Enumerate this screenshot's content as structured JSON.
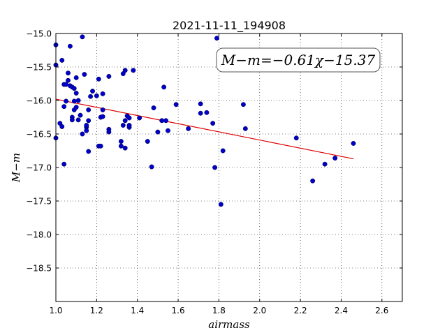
{
  "chart_data": {
    "type": "scatter",
    "title": "2021-11-11_194908",
    "xlabel": "airmass",
    "ylabel": "M−m",
    "xlim": [
      1.0,
      2.7
    ],
    "ylim": [
      -15.0,
      -19.0
    ],
    "y_inverted": true,
    "grid": true,
    "xticks": [
      1.0,
      1.2,
      1.4,
      1.6,
      1.8,
      2.0,
      2.2,
      2.4,
      2.6
    ],
    "xtick_labels": [
      "1.0",
      "1.2",
      "1.4",
      "1.6",
      "1.8",
      "2.0",
      "2.2",
      "2.4",
      "2.6"
    ],
    "yticks": [
      -15.0,
      -15.5,
      -16.0,
      -16.5,
      -17.0,
      -17.5,
      -18.0,
      -18.5
    ],
    "ytick_labels": [
      "−15.0",
      "−15.5",
      "−16.0",
      "−16.5",
      "−17.0",
      "−17.5",
      "−18.0",
      "−18.5"
    ],
    "annotation": "M−m=−0.61χ−15.37",
    "annotation_position": "top-right",
    "point_color": "#0000cc",
    "fit_color": "#dd0000",
    "fit": {
      "slope": -0.61,
      "intercept": -15.37,
      "x_range": [
        1.0,
        2.46
      ]
    },
    "points": [
      [
        1.0,
        -15.17
      ],
      [
        1.0,
        -15.47
      ],
      [
        1.0,
        -16.56
      ],
      [
        1.02,
        -16.34
      ],
      [
        1.03,
        -16.39
      ],
      [
        1.03,
        -15.4
      ],
      [
        1.04,
        -16.95
      ],
      [
        1.04,
        -16.09
      ],
      [
        1.05,
        -16.01
      ],
      [
        1.04,
        -15.76
      ],
      [
        1.05,
        -15.76
      ],
      [
        1.06,
        -15.7
      ],
      [
        1.06,
        -15.59
      ],
      [
        1.07,
        -15.78
      ],
      [
        1.07,
        -15.19
      ],
      [
        1.08,
        -16.25
      ],
      [
        1.08,
        -16.29
      ],
      [
        1.09,
        -16.14
      ],
      [
        1.09,
        -16.01
      ],
      [
        1.08,
        -15.8
      ],
      [
        1.09,
        -15.82
      ],
      [
        1.1,
        -16.1
      ],
      [
        1.1,
        -15.66
      ],
      [
        1.1,
        -15.89
      ],
      [
        1.11,
        -16.29
      ],
      [
        1.11,
        -16.0
      ],
      [
        1.12,
        -16.22
      ],
      [
        1.13,
        -15.05
      ],
      [
        1.13,
        -16.5
      ],
      [
        1.14,
        -15.61
      ],
      [
        1.15,
        -16.4
      ],
      [
        1.15,
        -16.37
      ],
      [
        1.15,
        -16.45
      ],
      [
        1.16,
        -16.14
      ],
      [
        1.16,
        -16.3
      ],
      [
        1.16,
        -16.76
      ],
      [
        1.17,
        -15.94
      ],
      [
        1.18,
        -15.86
      ],
      [
        1.2,
        -15.93
      ],
      [
        1.21,
        -16.68
      ],
      [
        1.21,
        -15.68
      ],
      [
        1.22,
        -16.68
      ],
      [
        1.22,
        -16.25
      ],
      [
        1.23,
        -16.14
      ],
      [
        1.23,
        -16.24
      ],
      [
        1.23,
        -15.9
      ],
      [
        1.26,
        -15.64
      ],
      [
        1.26,
        -16.43
      ],
      [
        1.26,
        -16.47
      ],
      [
        1.32,
        -16.68
      ],
      [
        1.32,
        -16.61
      ],
      [
        1.33,
        -15.6
      ],
      [
        1.33,
        -16.37
      ],
      [
        1.34,
        -15.55
      ],
      [
        1.34,
        -16.3
      ],
      [
        1.34,
        -16.71
      ],
      [
        1.35,
        -16.23
      ],
      [
        1.36,
        -16.4
      ],
      [
        1.36,
        -16.26
      ],
      [
        1.36,
        -16.37
      ],
      [
        1.38,
        -15.55
      ],
      [
        1.41,
        -16.26
      ],
      [
        1.45,
        -16.61
      ],
      [
        1.47,
        -16.99
      ],
      [
        1.48,
        -16.11
      ],
      [
        1.5,
        -16.47
      ],
      [
        1.52,
        -16.3
      ],
      [
        1.53,
        -15.8
      ],
      [
        1.54,
        -16.3
      ],
      [
        1.55,
        -16.45
      ],
      [
        1.59,
        -16.06
      ],
      [
        1.65,
        -16.42
      ],
      [
        1.71,
        -16.19
      ],
      [
        1.71,
        -16.05
      ],
      [
        1.74,
        -16.18
      ],
      [
        1.77,
        -16.34
      ],
      [
        1.78,
        -17.0
      ],
      [
        1.79,
        -15.07
      ],
      [
        1.81,
        -17.55
      ],
      [
        1.82,
        -16.75
      ],
      [
        1.92,
        -16.06
      ],
      [
        1.93,
        -16.42
      ],
      [
        2.18,
        -16.56
      ],
      [
        2.26,
        -17.2
      ],
      [
        2.32,
        -16.95
      ],
      [
        2.37,
        -16.86
      ],
      [
        2.46,
        -16.64
      ]
    ]
  }
}
